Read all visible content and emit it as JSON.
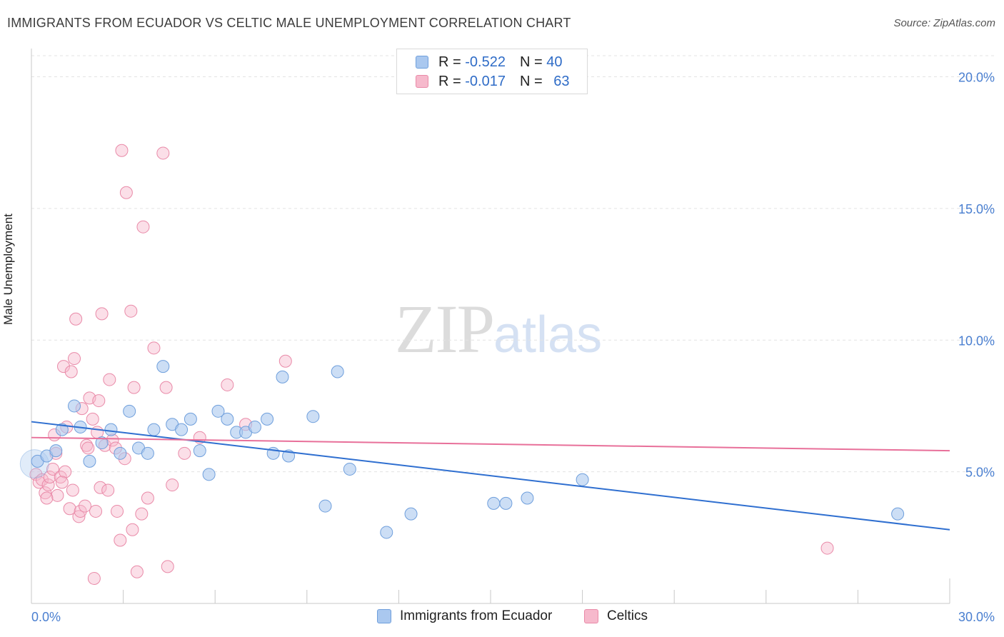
{
  "title": "IMMIGRANTS FROM ECUADOR VS CELTIC MALE UNEMPLOYMENT CORRELATION CHART",
  "source": "Source: ZipAtlas.com",
  "watermark": {
    "zip": "ZIP",
    "atlas": "atlas"
  },
  "legend": {
    "rows": [
      {
        "r_label": "R = ",
        "r_value": "-0.522",
        "n_label": "N = ",
        "n_value": "40"
      },
      {
        "r_label": "R = ",
        "r_value": "-0.017",
        "n_label": "N = ",
        "n_value": "63"
      }
    ]
  },
  "bottom_legend": [
    "Immigrants from Ecuador",
    "Celtics"
  ],
  "chart_data": {
    "type": "scatter",
    "title": "IMMIGRANTS FROM ECUADOR VS CELTIC MALE UNEMPLOYMENT CORRELATION CHART",
    "xlabel": "",
    "ylabel": "Male Unemployment",
    "xlim": [
      0,
      30
    ],
    "ylim": [
      0,
      20.8
    ],
    "x_tick_labels": [
      "0.0%",
      "30.0%"
    ],
    "y_ticks": [
      5,
      10,
      15,
      20
    ],
    "y_tick_labels": [
      "5.0%",
      "10.0%",
      "15.0%",
      "20.0%"
    ],
    "grid": true,
    "legend_position": "top-center",
    "colors": {
      "ecuador_fill": "#aac8ef",
      "ecuador_stroke": "#6f9fdc",
      "ecuador_line": "#2f6fd0",
      "celtics_fill": "#f6b9cc",
      "celtics_stroke": "#e98aa8",
      "celtics_line": "#e8709a",
      "grid": "#e3e3e3",
      "axis_label": "#4a7fd0"
    },
    "series": [
      {
        "name": "Immigrants from Ecuador",
        "color": "#aac8ef",
        "trend": {
          "x": [
            0,
            30
          ],
          "y": [
            6.9,
            2.8
          ]
        },
        "points": [
          [
            0.2,
            5.4
          ],
          [
            0.5,
            5.6
          ],
          [
            0.8,
            5.8
          ],
          [
            1.0,
            6.6
          ],
          [
            1.4,
            7.5
          ],
          [
            1.6,
            6.7
          ],
          [
            1.9,
            5.4
          ],
          [
            2.3,
            6.1
          ],
          [
            2.6,
            6.6
          ],
          [
            2.9,
            5.7
          ],
          [
            3.2,
            7.3
          ],
          [
            3.5,
            5.9
          ],
          [
            3.8,
            5.7
          ],
          [
            4.0,
            6.6
          ],
          [
            4.3,
            9.0
          ],
          [
            4.6,
            6.8
          ],
          [
            4.9,
            6.6
          ],
          [
            5.2,
            7.0
          ],
          [
            5.5,
            5.8
          ],
          [
            5.8,
            4.9
          ],
          [
            6.1,
            7.3
          ],
          [
            6.4,
            7.0
          ],
          [
            6.7,
            6.5
          ],
          [
            7.0,
            6.5
          ],
          [
            7.3,
            6.7
          ],
          [
            7.7,
            7.0
          ],
          [
            7.9,
            5.7
          ],
          [
            8.2,
            8.6
          ],
          [
            8.4,
            5.6
          ],
          [
            9.2,
            7.1
          ],
          [
            9.6,
            3.7
          ],
          [
            10.0,
            8.8
          ],
          [
            10.4,
            5.1
          ],
          [
            11.6,
            2.7
          ],
          [
            12.4,
            3.4
          ],
          [
            15.1,
            3.8
          ],
          [
            15.5,
            3.8
          ],
          [
            16.2,
            4.0
          ],
          [
            18.0,
            4.7
          ],
          [
            28.3,
            3.4
          ]
        ]
      },
      {
        "name": "Celtics",
        "color": "#f6b9cc",
        "trend": {
          "x": [
            0,
            30
          ],
          "y": [
            6.3,
            5.8
          ]
        },
        "points": [
          [
            0.15,
            4.9
          ],
          [
            0.25,
            4.6
          ],
          [
            0.35,
            4.7
          ],
          [
            0.45,
            4.2
          ],
          [
            0.55,
            4.5
          ],
          [
            0.6,
            4.8
          ],
          [
            0.7,
            5.1
          ],
          [
            0.75,
            6.4
          ],
          [
            0.8,
            5.7
          ],
          [
            0.85,
            4.1
          ],
          [
            0.95,
            4.8
          ],
          [
            1.05,
            9.0
          ],
          [
            1.1,
            5.0
          ],
          [
            1.15,
            6.7
          ],
          [
            1.25,
            3.6
          ],
          [
            1.3,
            8.8
          ],
          [
            1.35,
            4.3
          ],
          [
            1.4,
            9.3
          ],
          [
            1.45,
            10.8
          ],
          [
            1.55,
            3.3
          ],
          [
            1.6,
            3.5
          ],
          [
            1.65,
            7.4
          ],
          [
            1.75,
            3.7
          ],
          [
            1.8,
            6.0
          ],
          [
            1.85,
            5.9
          ],
          [
            1.9,
            7.8
          ],
          [
            2.0,
            7.0
          ],
          [
            2.1,
            3.5
          ],
          [
            2.15,
            6.5
          ],
          [
            2.2,
            7.7
          ],
          [
            2.25,
            4.4
          ],
          [
            2.3,
            11.0
          ],
          [
            2.4,
            6.0
          ],
          [
            2.5,
            4.3
          ],
          [
            2.55,
            8.5
          ],
          [
            2.65,
            6.2
          ],
          [
            2.75,
            5.9
          ],
          [
            2.8,
            3.5
          ],
          [
            2.9,
            2.4
          ],
          [
            2.95,
            17.2
          ],
          [
            3.05,
            5.5
          ],
          [
            3.1,
            15.6
          ],
          [
            3.25,
            11.1
          ],
          [
            3.3,
            2.8
          ],
          [
            3.35,
            8.2
          ],
          [
            3.45,
            1.2
          ],
          [
            3.6,
            3.4
          ],
          [
            3.65,
            14.3
          ],
          [
            4.0,
            9.7
          ],
          [
            4.3,
            17.1
          ],
          [
            4.4,
            8.2
          ],
          [
            4.45,
            1.4
          ],
          [
            4.6,
            4.5
          ],
          [
            5.0,
            5.7
          ],
          [
            5.5,
            6.3
          ],
          [
            6.4,
            8.3
          ],
          [
            7.0,
            6.8
          ],
          [
            8.3,
            9.2
          ],
          [
            26.0,
            2.1
          ],
          [
            3.8,
            4.0
          ],
          [
            0.5,
            4.0
          ],
          [
            1.0,
            4.6
          ],
          [
            2.05,
            0.95
          ]
        ]
      }
    ]
  }
}
